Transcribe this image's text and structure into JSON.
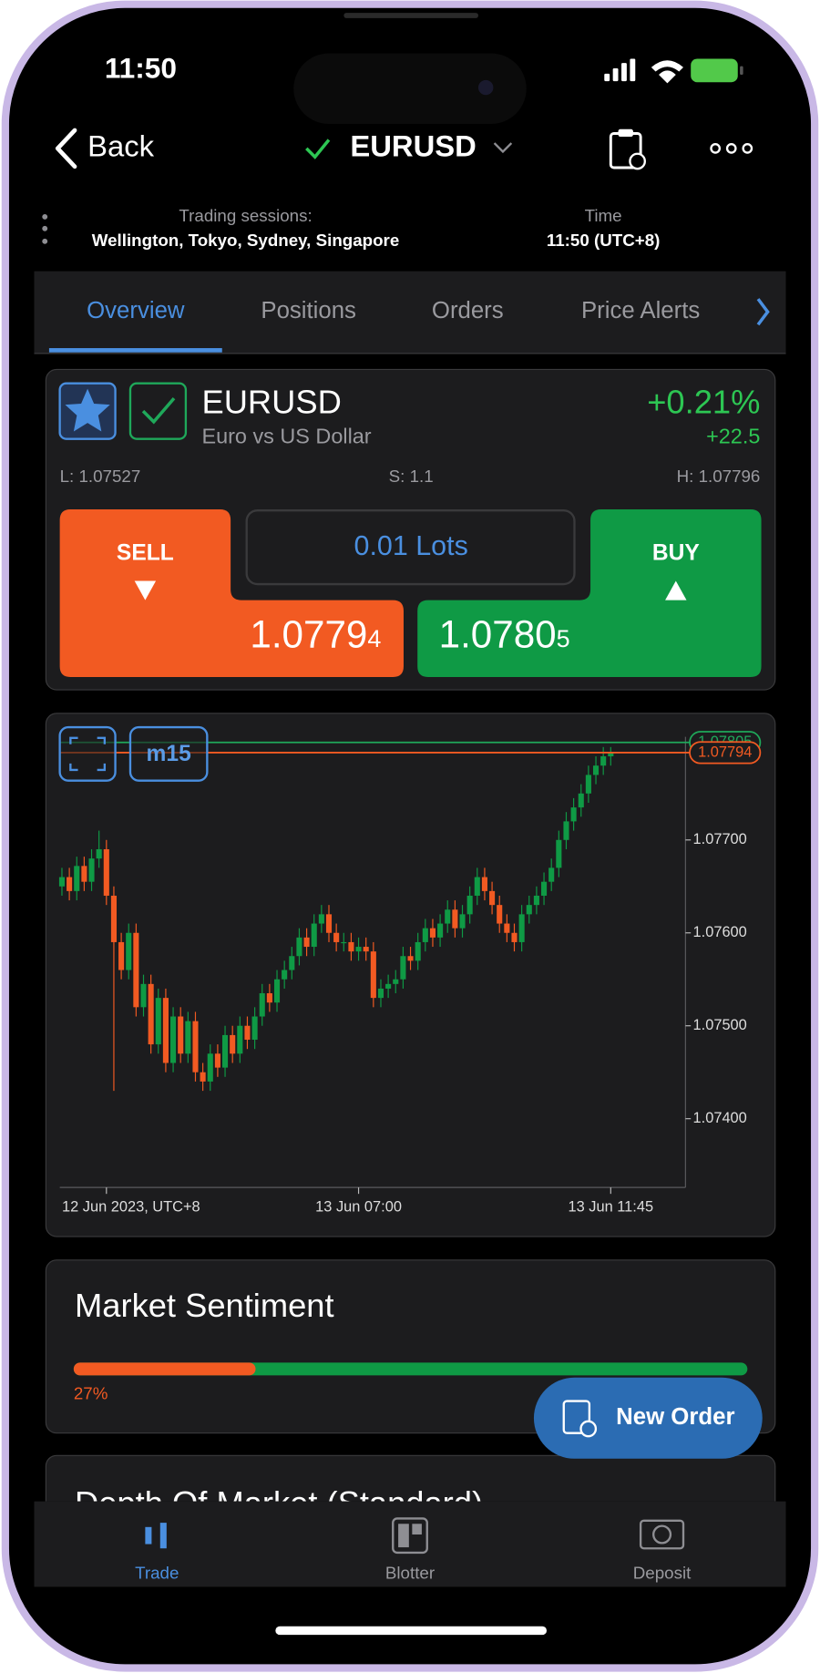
{
  "status_bar": {
    "time": "11:50"
  },
  "nav": {
    "back": "Back",
    "symbol": "EURUSD"
  },
  "sessions": {
    "label": "Trading sessions:",
    "value": "Wellington, Tokyo, Sydney, Singapore",
    "time_label": "Time",
    "time_value": "11:50 (UTC+8)"
  },
  "tabs": [
    "Overview",
    "Positions",
    "Orders",
    "Price Alerts"
  ],
  "instrument": {
    "symbol": "EURUSD",
    "name": "Euro vs US Dollar",
    "change_percent": "+0.21%",
    "change_points": "+22.5",
    "low": "L: 1.07527",
    "spread": "S: 1.1",
    "high": "H: 1.07796",
    "sell_label": "SELL",
    "buy_label": "BUY",
    "lots": "0.01 Lots",
    "sell_price": {
      "main": "1.0779",
      "pip": "4"
    },
    "buy_price": {
      "main": "1.0780",
      "pip": "5"
    }
  },
  "price_chart": {
    "type": "candlestick",
    "timeframe": "m15",
    "categories": [
      null,
      null,
      null,
      null,
      null,
      null,
      "12 Jun 2023, UTC+8",
      null,
      null,
      null,
      null,
      null,
      null,
      null,
      null,
      null,
      null,
      null,
      null,
      null,
      null,
      null,
      null,
      null,
      null,
      null,
      null,
      null,
      null,
      null,
      null,
      null,
      null,
      null,
      null,
      null,
      null,
      null,
      null,
      null,
      "13 Jun 07:00",
      null,
      null,
      null,
      null,
      null,
      null,
      null,
      null,
      null,
      null,
      null,
      null,
      null,
      null,
      null,
      null,
      null,
      null,
      null,
      null,
      null,
      null,
      null,
      null,
      null,
      null,
      null,
      null,
      null,
      null,
      null,
      null,
      null,
      "13 Jun 11:45"
    ],
    "open": [
      1.0765,
      1.0766,
      1.07645,
      1.07672,
      1.07655,
      1.0768,
      1.0769,
      1.0764,
      1.0759,
      1.0756,
      1.076,
      1.0752,
      1.07545,
      1.0748,
      1.0753,
      1.0746,
      1.0751,
      1.0747,
      1.07505,
      1.0745,
      1.0744,
      1.0747,
      1.07455,
      1.0749,
      1.0747,
      1.075,
      1.07485,
      1.0751,
      1.07535,
      1.07525,
      1.0755,
      1.0756,
      1.07575,
      1.07595,
      1.07585,
      1.0761,
      1.0762,
      1.076,
      1.0759,
      1.0759,
      1.0758,
      1.07585,
      1.0758,
      1.0753,
      1.0754,
      1.07545,
      1.0755,
      1.07575,
      1.0757,
      1.0759,
      1.07605,
      1.07595,
      1.0761,
      1.07625,
      1.07605,
      1.0762,
      1.0764,
      1.0766,
      1.07645,
      1.0763,
      1.0761,
      1.076,
      1.0759,
      1.0762,
      1.0763,
      1.0764,
      1.07655,
      1.0767,
      1.077,
      1.0772,
      1.07735,
      1.0775,
      1.0777,
      1.0778,
      1.0779
    ],
    "high": [
      1.0767,
      1.0767,
      1.07682,
      1.07682,
      1.0769,
      1.0771,
      1.077,
      1.0765,
      1.076,
      1.0761,
      1.0761,
      1.07555,
      1.07555,
      1.0754,
      1.0754,
      1.0752,
      1.0752,
      1.07515,
      1.07515,
      1.0746,
      1.0748,
      1.0748,
      1.075,
      1.075,
      1.0751,
      1.0751,
      1.0752,
      1.07545,
      1.07545,
      1.0756,
      1.0757,
      1.07585,
      1.07605,
      1.07605,
      1.0762,
      1.0763,
      1.0763,
      1.0761,
      1.076,
      1.076,
      1.07595,
      1.07595,
      1.0759,
      1.0755,
      1.07555,
      1.0756,
      1.07585,
      1.07585,
      1.076,
      1.07615,
      1.07615,
      1.0762,
      1.07635,
      1.07635,
      1.0763,
      1.0765,
      1.0767,
      1.0767,
      1.07655,
      1.0764,
      1.0762,
      1.0761,
      1.0763,
      1.0764,
      1.0765,
      1.07665,
      1.0768,
      1.0771,
      1.0773,
      1.07745,
      1.0776,
      1.0778,
      1.0779,
      1.078,
      1.078
    ],
    "low": [
      1.0764,
      1.07635,
      1.07635,
      1.07645,
      1.07645,
      1.0767,
      1.0763,
      1.0743,
      1.0755,
      1.0755,
      1.0751,
      1.0751,
      1.0747,
      1.0747,
      1.0745,
      1.0745,
      1.0746,
      1.0746,
      1.0744,
      1.0743,
      1.0743,
      1.07445,
      1.07445,
      1.0746,
      1.0746,
      1.07475,
      1.07475,
      1.075,
      1.07515,
      1.07515,
      1.0754,
      1.0755,
      1.07565,
      1.07575,
      1.07575,
      1.076,
      1.0759,
      1.0758,
      1.0758,
      1.0757,
      1.0757,
      1.0757,
      1.0752,
      1.0752,
      1.0753,
      1.07535,
      1.0754,
      1.0756,
      1.0756,
      1.0758,
      1.07585,
      1.07585,
      1.076,
      1.07595,
      1.07595,
      1.0761,
      1.0763,
      1.07635,
      1.0762,
      1.076,
      1.0759,
      1.0758,
      1.0758,
      1.0761,
      1.0762,
      1.0763,
      1.07645,
      1.0766,
      1.0769,
      1.0771,
      1.07725,
      1.0774,
      1.0776,
      1.0777,
      1.0778
    ],
    "close": [
      1.0766,
      1.07645,
      1.07672,
      1.07655,
      1.0768,
      1.0769,
      1.0764,
      1.0759,
      1.0756,
      1.076,
      1.0752,
      1.07545,
      1.0748,
      1.0753,
      1.0746,
      1.0751,
      1.0747,
      1.07505,
      1.0745,
      1.0744,
      1.0747,
      1.07455,
      1.0749,
      1.0747,
      1.075,
      1.07485,
      1.0751,
      1.07535,
      1.07525,
      1.0755,
      1.0756,
      1.07575,
      1.07595,
      1.07585,
      1.0761,
      1.0762,
      1.076,
      1.0759,
      1.0759,
      1.0758,
      1.07585,
      1.0758,
      1.0753,
      1.0754,
      1.07545,
      1.0755,
      1.07575,
      1.0757,
      1.0759,
      1.07605,
      1.07595,
      1.0761,
      1.07625,
      1.07605,
      1.0762,
      1.0764,
      1.0766,
      1.07645,
      1.0763,
      1.0761,
      1.076,
      1.0759,
      1.0762,
      1.0763,
      1.0764,
      1.07655,
      1.0767,
      1.077,
      1.0772,
      1.07735,
      1.0775,
      1.0777,
      1.0778,
      1.0779,
      1.07794
    ],
    "up_color": "#0f9a45",
    "down_color": "#f25a22",
    "ylim": [
      1.07326,
      1.07811
    ],
    "yticks": [
      {
        "value": 1.074,
        "label": "1.07400"
      },
      {
        "value": 1.075,
        "label": "1.07500"
      },
      {
        "value": 1.076,
        "label": "1.07600"
      },
      {
        "value": 1.077,
        "label": "1.07700"
      }
    ],
    "ask_line": {
      "value": 1.07805,
      "color": "#1fa85a"
    },
    "bid_line": {
      "value": 1.07794,
      "color": "#f25a22"
    }
  },
  "sentiment": {
    "title": "Market Sentiment",
    "value": 27,
    "label": "27%"
  },
  "new_order": "New Order",
  "depth": {
    "title": "Depth Of Market (Standard)"
  },
  "bottom_tabs": [
    "Trade",
    "Blotter",
    "Deposit"
  ]
}
